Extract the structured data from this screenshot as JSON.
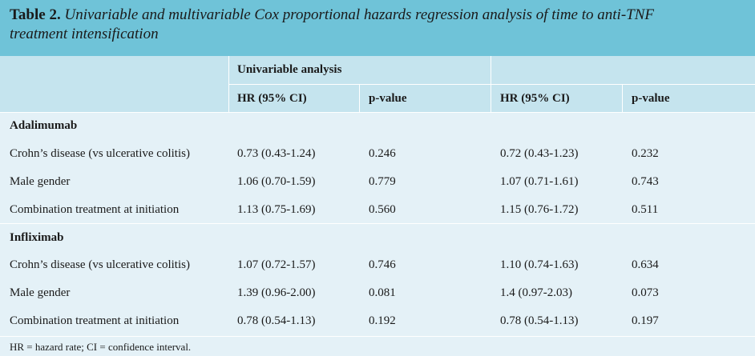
{
  "title": {
    "number": "Table 2.",
    "text": "Univariable and multivariable Cox proportional hazards regression analysis of time to anti-TNF",
    "text_line2": "treatment intensification"
  },
  "header": {
    "group_univariable": "Univariable analysis",
    "group_multivariable": "",
    "col_hr_uni": "HR (95% CI)",
    "col_p_uni": "p-value",
    "col_hr_multi": "HR (95% CI)",
    "col_p_multi": "p-value"
  },
  "sections": [
    {
      "label": "Adalimumab",
      "rows": [
        {
          "variable": "Crohn’s disease (vs ulcerative colitis)",
          "hr_uni": "0.73 (0.43-1.24)",
          "p_uni": "0.246",
          "hr_multi": "0.72 (0.43-1.23)",
          "p_multi": "0.232"
        },
        {
          "variable": "Male gender",
          "hr_uni": "1.06 (0.70-1.59)",
          "p_uni": "0.779",
          "hr_multi": "1.07 (0.71-1.61)",
          "p_multi": "0.743"
        },
        {
          "variable": "Combination treatment at initiation",
          "hr_uni": "1.13 (0.75-1.69)",
          "p_uni": "0.560",
          "hr_multi": "1.15 (0.76-1.72)",
          "p_multi": "0.511"
        }
      ]
    },
    {
      "label": "Infliximab",
      "rows": [
        {
          "variable": "Crohn’s disease (vs ulcerative colitis)",
          "hr_uni": "1.07 (0.72-1.57)",
          "p_uni": "0.746",
          "hr_multi": "1.10 (0.74-1.63)",
          "p_multi": "0.634"
        },
        {
          "variable": "Male gender",
          "hr_uni": "1.39 (0.96-2.00)",
          "p_uni": "0.081",
          "hr_multi": "1.4 (0.97-2.03)",
          "p_multi": "0.073"
        },
        {
          "variable": "Combination treatment at initiation",
          "hr_uni": "0.78 (0.54-1.13)",
          "p_uni": "0.192",
          "hr_multi": "0.78 (0.54-1.13)",
          "p_multi": "0.197"
        }
      ]
    }
  ],
  "footnote": "HR = hazard rate; CI = confidence interval."
}
